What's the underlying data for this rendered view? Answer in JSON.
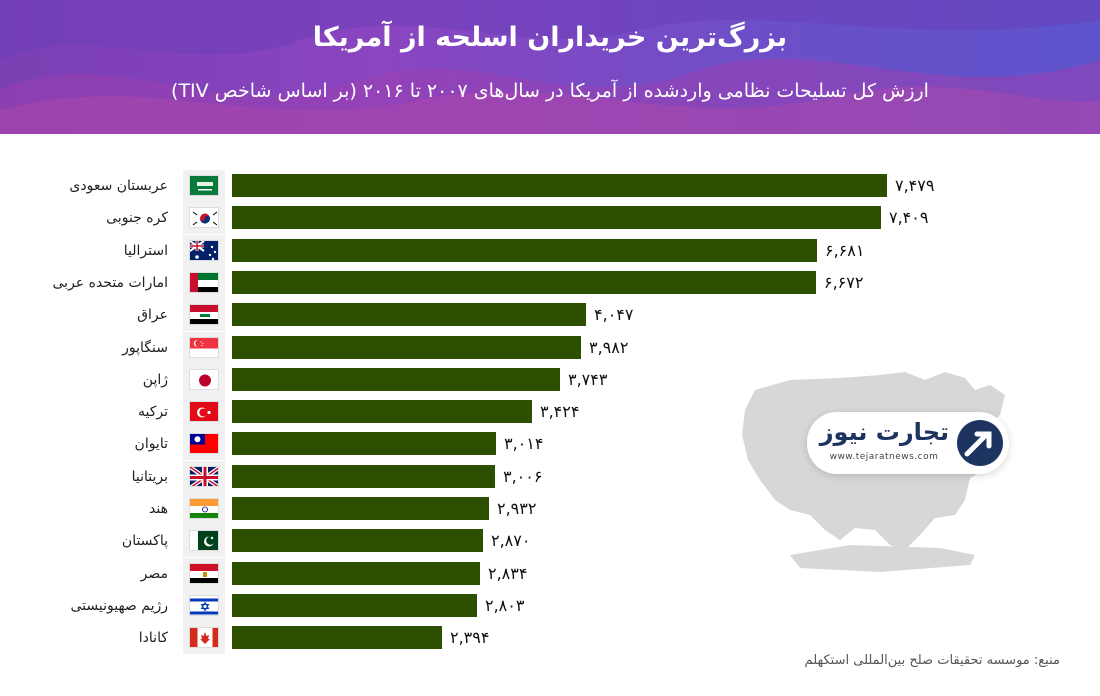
{
  "header": {
    "title": "بزرگ‌ترین خریداران اسلحه از آمریکا",
    "subtitle": "ارزش کل تسلیحات نظامی واردشده از آمریکا در سال‌های ۲۰۰۷ تا ۲۰۱۶ (بر اساس شاخص TIV)"
  },
  "colors": {
    "bar": "#2c5000",
    "header_start": "#7b3fb4",
    "header_end": "#5d54cc"
  },
  "chart_data": {
    "type": "bar",
    "orientation": "horizontal",
    "title": "بزرگ‌ترین خریداران اسلحه از آمریکا",
    "subtitle": "ارزش کل تسلیحات نظامی واردشده از آمریکا در سال‌های ۲۰۰۷ تا ۲۰۱۶ (بر اساس شاخص TIV)",
    "categories": [
      "عربستان سعودی",
      "کره جنوبی",
      "استرالیا",
      "امارات متحده عربی",
      "عراق",
      "سنگاپور",
      "ژاپن",
      "ترکیه",
      "تایوان",
      "بریتانیا",
      "هند",
      "پاکستان",
      "مصر",
      "رژیم صهیونیستی",
      "کانادا"
    ],
    "values": [
      7479,
      7409,
      6681,
      6672,
      4047,
      3982,
      3743,
      3424,
      3014,
      3006,
      2932,
      2870,
      2834,
      2803,
      2394
    ],
    "value_labels": [
      "۷,۴۷۹",
      "۷,۴۰۹",
      "۶,۶۸۱",
      "۶,۶۷۲",
      "۴,۰۴۷",
      "۳,۹۸۲",
      "۳,۷۴۳",
      "۳,۴۲۴",
      "۳,۰۱۴",
      "۳,۰۰۶",
      "۲,۹۳۲",
      "۲,۸۷۰",
      "۲,۸۳۴",
      "۲,۸۰۳",
      "۲,۳۹۴"
    ],
    "flags": [
      "saudi-arabia",
      "south-korea",
      "australia",
      "uae",
      "iraq",
      "singapore",
      "japan",
      "turkey",
      "taiwan",
      "uk",
      "india",
      "pakistan",
      "egypt",
      "israel",
      "canada"
    ],
    "xlim": [
      0,
      7479
    ],
    "grid": false,
    "legend": "none"
  },
  "logo": {
    "text": "تجارت نیوز",
    "url_text": "www.tejaratnews.com"
  },
  "source": "منبع: موسسه تحقیقات صلح بین‌المللی استکهلم"
}
